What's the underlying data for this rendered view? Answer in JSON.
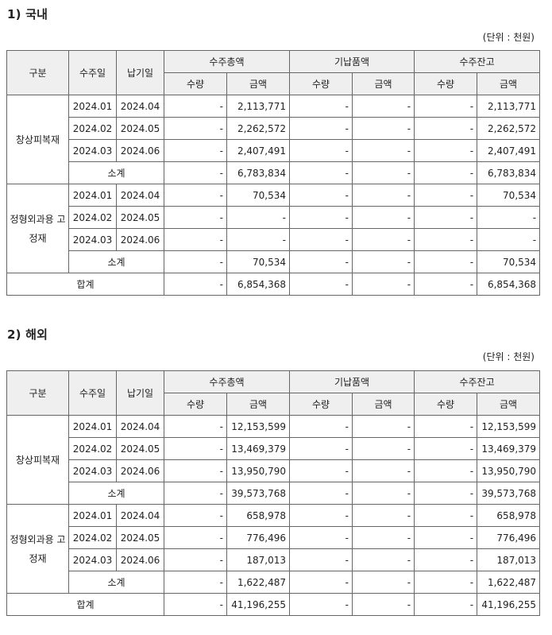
{
  "sections": [
    {
      "heading": "1) 국내",
      "unit": "(단위 : 천원)",
      "headers": {
        "category": "구분",
        "order_date": "수주일",
        "delivery_date": "납기일",
        "groups": [
          "수주총액",
          "기납품액",
          "수주잔고"
        ],
        "qty": "수량",
        "amount": "금액"
      },
      "categories": [
        {
          "name": "창상피복재",
          "rows": [
            {
              "order_date": "2024.01",
              "delivery_date": "2024.04",
              "total_qty": "-",
              "total_amount": "2,113,771",
              "delivered_qty": "-",
              "delivered_amount": "-",
              "backlog_qty": "-",
              "backlog_amount": "2,113,771"
            },
            {
              "order_date": "2024.02",
              "delivery_date": "2024.05",
              "total_qty": "-",
              "total_amount": "2,262,572",
              "delivered_qty": "-",
              "delivered_amount": "-",
              "backlog_qty": "-",
              "backlog_amount": "2,262,572"
            },
            {
              "order_date": "2024.03",
              "delivery_date": "2024.06",
              "total_qty": "-",
              "total_amount": "2,407,491",
              "delivered_qty": "-",
              "delivered_amount": "-",
              "backlog_qty": "-",
              "backlog_amount": "2,407,491"
            }
          ],
          "subtotal": {
            "label": "소계",
            "total_qty": "-",
            "total_amount": "6,783,834",
            "delivered_qty": "-",
            "delivered_amount": "-",
            "backlog_qty": "-",
            "backlog_amount": "6,783,834"
          }
        },
        {
          "name": "정형외과용 고정재",
          "rows": [
            {
              "order_date": "2024.01",
              "delivery_date": "2024.04",
              "total_qty": "-",
              "total_amount": "70,534",
              "delivered_qty": "-",
              "delivered_amount": "-",
              "backlog_qty": "-",
              "backlog_amount": "70,534"
            },
            {
              "order_date": "2024.02",
              "delivery_date": "2024.05",
              "total_qty": "-",
              "total_amount": "-",
              "delivered_qty": "-",
              "delivered_amount": "-",
              "backlog_qty": "-",
              "backlog_amount": "-"
            },
            {
              "order_date": "2024.03",
              "delivery_date": "2024.06",
              "total_qty": "-",
              "total_amount": "-",
              "delivered_qty": "-",
              "delivered_amount": "-",
              "backlog_qty": "-",
              "backlog_amount": "-"
            }
          ],
          "subtotal": {
            "label": "소계",
            "total_qty": "-",
            "total_amount": "70,534",
            "delivered_qty": "-",
            "delivered_amount": "-",
            "backlog_qty": "-",
            "backlog_amount": "70,534"
          }
        }
      ],
      "total": {
        "label": "합계",
        "total_qty": "-",
        "total_amount": "6,854,368",
        "delivered_qty": "-",
        "delivered_amount": "-",
        "backlog_qty": "-",
        "backlog_amount": "6,854,368"
      }
    },
    {
      "heading": "2) 해외",
      "unit": "(단위 : 천원)",
      "headers": {
        "category": "구분",
        "order_date": "수주일",
        "delivery_date": "납기일",
        "groups": [
          "수주총액",
          "기납품액",
          "수주잔고"
        ],
        "qty": "수량",
        "amount": "금액"
      },
      "categories": [
        {
          "name": "창상피복재",
          "rows": [
            {
              "order_date": "2024.01",
              "delivery_date": "2024.04",
              "total_qty": "-",
              "total_amount": "12,153,599",
              "delivered_qty": "-",
              "delivered_amount": "-",
              "backlog_qty": "-",
              "backlog_amount": "12,153,599"
            },
            {
              "order_date": "2024.02",
              "delivery_date": "2024.05",
              "total_qty": "-",
              "total_amount": "13,469,379",
              "delivered_qty": "-",
              "delivered_amount": "-",
              "backlog_qty": "-",
              "backlog_amount": "13,469,379"
            },
            {
              "order_date": "2024.03",
              "delivery_date": "2024.06",
              "total_qty": "-",
              "total_amount": "13,950,790",
              "delivered_qty": "-",
              "delivered_amount": "-",
              "backlog_qty": "-",
              "backlog_amount": "13,950,790"
            }
          ],
          "subtotal": {
            "label": "소계",
            "total_qty": "-",
            "total_amount": "39,573,768",
            "delivered_qty": "-",
            "delivered_amount": "-",
            "backlog_qty": "-",
            "backlog_amount": "39,573,768"
          }
        },
        {
          "name": "정형외과용 고정재",
          "rows": [
            {
              "order_date": "2024.01",
              "delivery_date": "2024.04",
              "total_qty": "-",
              "total_amount": "658,978",
              "delivered_qty": "-",
              "delivered_amount": "-",
              "backlog_qty": "-",
              "backlog_amount": "658,978"
            },
            {
              "order_date": "2024.02",
              "delivery_date": "2024.05",
              "total_qty": "-",
              "total_amount": "776,496",
              "delivered_qty": "-",
              "delivered_amount": "-",
              "backlog_qty": "-",
              "backlog_amount": "776,496"
            },
            {
              "order_date": "2024.03",
              "delivery_date": "2024.06",
              "total_qty": "-",
              "total_amount": "187,013",
              "delivered_qty": "-",
              "delivered_amount": "-",
              "backlog_qty": "-",
              "backlog_amount": "187,013"
            }
          ],
          "subtotal": {
            "label": "소계",
            "total_qty": "-",
            "total_amount": "1,622,487",
            "delivered_qty": "-",
            "delivered_amount": "-",
            "backlog_qty": "-",
            "backlog_amount": "1,622,487"
          }
        }
      ],
      "total": {
        "label": "합계",
        "total_qty": "-",
        "total_amount": "41,196,255",
        "delivered_qty": "-",
        "delivered_amount": "-",
        "backlog_qty": "-",
        "backlog_amount": "41,196,255"
      }
    }
  ]
}
